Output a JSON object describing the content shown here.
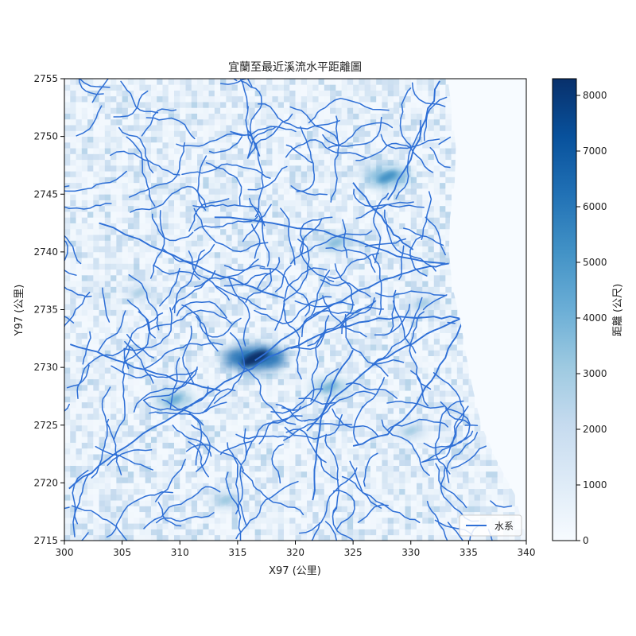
{
  "chart_data": {
    "type": "heatmap",
    "title": "宜蘭至最近溪流水平距離圖",
    "xlabel": "X97 (公里)",
    "ylabel": "Y97 (公里)",
    "xlim": [
      300,
      340
    ],
    "ylim": [
      2715,
      2755
    ],
    "x_ticks": [
      300,
      305,
      310,
      315,
      320,
      325,
      330,
      335,
      340
    ],
    "y_ticks": [
      2715,
      2720,
      2725,
      2730,
      2735,
      2740,
      2745,
      2750,
      2755
    ],
    "colorbar": {
      "label": "距離 (公尺)",
      "range": [
        0,
        8300
      ],
      "ticks": [
        0,
        1000,
        2000,
        3000,
        4000,
        5000,
        6000,
        7000,
        8000
      ],
      "colormap": "Blues"
    },
    "legend": {
      "label": "水系",
      "placement": "lower-right",
      "color": "#2e6fd6"
    },
    "coastline": [
      [
        333.2,
        2755
      ],
      [
        333.6,
        2752
      ],
      [
        333.9,
        2749
      ],
      [
        333.8,
        2746
      ],
      [
        333.4,
        2743
      ],
      [
        333.3,
        2740
      ],
      [
        333.6,
        2737
      ],
      [
        334.3,
        2734
      ],
      [
        334.8,
        2731
      ],
      [
        335.4,
        2728
      ],
      [
        336.1,
        2725
      ],
      [
        337.4,
        2722
      ],
      [
        339.0,
        2719
      ],
      [
        339.8,
        2716
      ],
      [
        340,
        2715
      ]
    ],
    "main_rivers": [
      {
        "name": "",
        "points": [
          [
            300.4,
            2719.5
          ],
          [
            303,
            2721.5
          ],
          [
            306,
            2723.6
          ],
          [
            309.5,
            2725.8
          ],
          [
            312.5,
            2727.8
          ],
          [
            315.5,
            2729.6
          ],
          [
            318.5,
            2731.2
          ],
          [
            322,
            2732.8
          ],
          [
            325.5,
            2733.9
          ],
          [
            329,
            2734.4
          ],
          [
            332,
            2734.4
          ],
          [
            334.8,
            2734.2
          ]
        ]
      },
      {
        "name": "",
        "points": [
          [
            316.5,
            2730.6
          ],
          [
            319.5,
            2732.8
          ],
          [
            322.5,
            2735
          ],
          [
            325.5,
            2736.7
          ],
          [
            328.5,
            2737.8
          ],
          [
            331,
            2738.6
          ],
          [
            333.3,
            2739.0
          ]
        ]
      },
      {
        "name": "",
        "points": [
          [
            321,
            2724.5
          ],
          [
            323.5,
            2727.5
          ],
          [
            326.5,
            2730
          ],
          [
            329.5,
            2731.8
          ],
          [
            332,
            2733.2
          ],
          [
            334.3,
            2734.2
          ]
        ]
      },
      {
        "name": "",
        "points": [
          [
            325,
            2723.2
          ],
          [
            328,
            2724.2
          ],
          [
            330.5,
            2726.8
          ],
          [
            332.2,
            2729.5
          ],
          [
            333.6,
            2732.2
          ],
          [
            334.5,
            2734
          ]
        ]
      },
      {
        "name": "",
        "points": [
          [
            321.5,
            2718.5
          ],
          [
            321.8,
            2722
          ],
          [
            322.2,
            2725.5
          ],
          [
            323.2,
            2728.5
          ],
          [
            325,
            2731.5
          ]
        ]
      },
      {
        "name": "",
        "points": [
          [
            328,
            2744.5
          ],
          [
            330,
            2748
          ],
          [
            331.3,
            2751.5
          ],
          [
            332.5,
            2754.8
          ]
        ]
      },
      {
        "name": "",
        "points": [
          [
            313,
            2743
          ],
          [
            318,
            2742.5
          ],
          [
            322.5,
            2741.8
          ],
          [
            326.5,
            2740.5
          ],
          [
            329.5,
            2739.5
          ],
          [
            333,
            2739
          ]
        ]
      },
      {
        "name": "",
        "points": [
          [
            303,
            2742.5
          ],
          [
            307.5,
            2740.5
          ],
          [
            311.5,
            2738.8
          ],
          [
            315.5,
            2737.2
          ],
          [
            319,
            2736
          ]
        ]
      },
      {
        "name": "",
        "points": [
          [
            325,
            2746
          ],
          [
            327,
            2743.5
          ],
          [
            328.5,
            2741.5
          ],
          [
            330.2,
            2740.2
          ]
        ]
      },
      {
        "name": "",
        "points": [
          [
            300.5,
            2732
          ],
          [
            303.5,
            2731
          ],
          [
            307,
            2729.8
          ],
          [
            310.5,
            2728.7
          ],
          [
            313.5,
            2728
          ]
        ]
      }
    ],
    "hotspots": [
      {
        "x": 316.5,
        "y": 2730.8,
        "distance": 8300
      },
      {
        "x": 328.0,
        "y": 2746.5,
        "distance": 5200
      },
      {
        "x": 309.5,
        "y": 2727.2,
        "distance": 4200
      },
      {
        "x": 323.0,
        "y": 2728.3,
        "distance": 4000
      },
      {
        "x": 323.5,
        "y": 2740.8,
        "distance": 3600
      },
      {
        "x": 314.0,
        "y": 2718.5,
        "distance": 3200
      },
      {
        "x": 331.0,
        "y": 2735.5,
        "distance": 3000
      },
      {
        "x": 306.5,
        "y": 2736.5,
        "distance": 2800
      },
      {
        "x": 330.0,
        "y": 2724.5,
        "distance": 3000
      }
    ]
  }
}
